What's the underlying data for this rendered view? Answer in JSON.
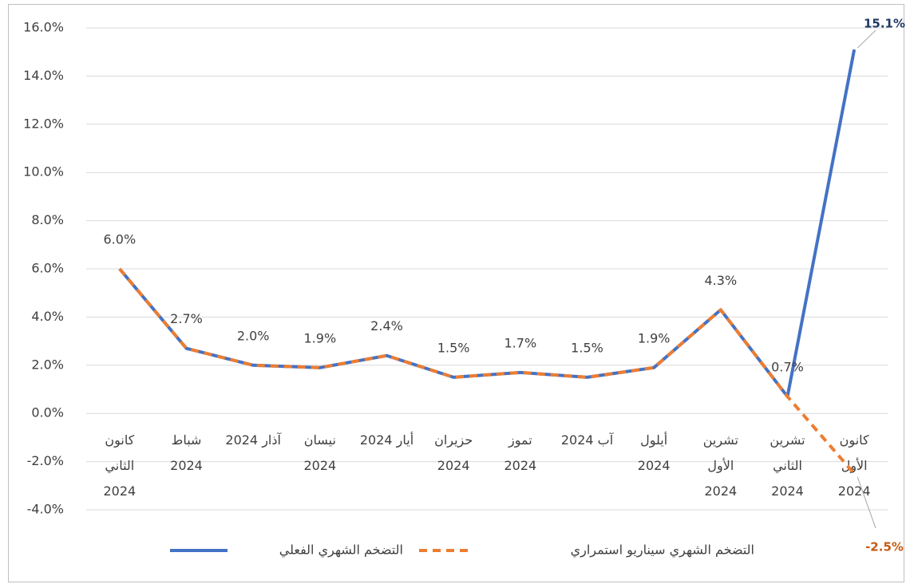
{
  "chart_data": {
    "type": "line",
    "categories": [
      "كانون\nالثاني\n2024",
      "شباط\n2024",
      "آذار 2024",
      "نيسان\n2024",
      "أيار 2024",
      "حزيران\n2024",
      "تموز\n2024",
      "آب 2024",
      "أيلول\n2024",
      "تشرين\nالأول\n2024",
      "تشرين\nالثاني\n2024",
      "كانون\nالأول\n2024"
    ],
    "series": [
      {
        "name": "التضخم الشهري الفعلي",
        "color": "#4472c4",
        "values": [
          6.0,
          2.7,
          2.0,
          1.9,
          2.4,
          1.5,
          1.7,
          1.5,
          1.9,
          4.3,
          0.7,
          15.1
        ],
        "value_labels": [
          "6.0%",
          "2.7%",
          "2.0%",
          "1.9%",
          "2.4%",
          "1.5%",
          "1.7%",
          "1.5%",
          "1.9%",
          "4.3%",
          "0.7%",
          "15.1%"
        ]
      },
      {
        "name": "التضخم الشهري سيناريو استمراري",
        "color": "#ed7d31",
        "values": [
          6.0,
          2.7,
          2.0,
          1.9,
          2.4,
          1.5,
          1.7,
          1.5,
          1.9,
          4.3,
          0.7,
          -2.5
        ],
        "value_labels": [
          null,
          null,
          null,
          null,
          null,
          null,
          null,
          null,
          null,
          null,
          null,
          "-2.5%"
        ]
      }
    ],
    "ylim": [
      -4,
      16
    ],
    "yticks": [
      {
        "value": -4,
        "label": "-4.0%"
      },
      {
        "value": -2,
        "label": "-2.0%"
      },
      {
        "value": 0,
        "label": "0.0%"
      },
      {
        "value": 2,
        "label": "2.0%"
      },
      {
        "value": 4,
        "label": "4.0%"
      },
      {
        "value": 6,
        "label": "6.0%"
      },
      {
        "value": 8,
        "label": "8.0%"
      },
      {
        "value": 10,
        "label": "10.0%"
      },
      {
        "value": 12,
        "label": "12.0%"
      },
      {
        "value": 14,
        "label": "14.0%"
      },
      {
        "value": 16,
        "label": "16.0%"
      }
    ],
    "grid": true
  }
}
